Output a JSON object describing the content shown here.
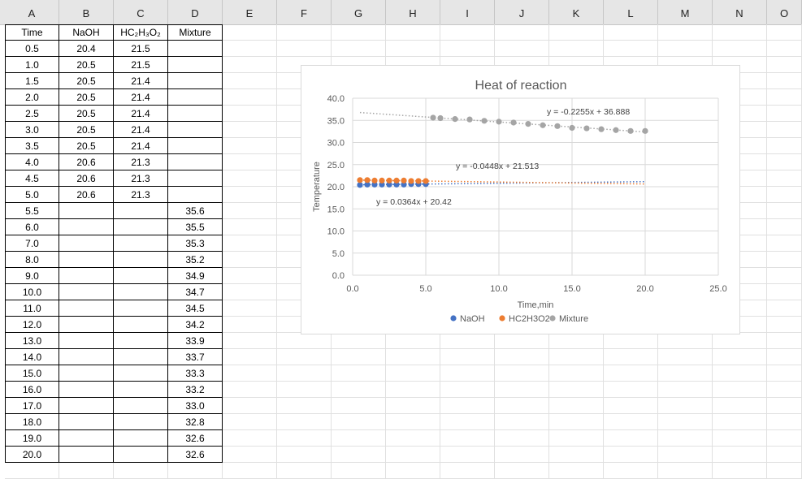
{
  "columns": [
    "A",
    "B",
    "C",
    "D",
    "E",
    "F",
    "G",
    "H",
    "I",
    "J",
    "K",
    "L",
    "M",
    "N",
    "O"
  ],
  "table": {
    "headers": [
      "Time",
      "NaOH",
      "HC₂H₃O₂",
      "Mixture"
    ],
    "rows": [
      [
        "0.5",
        "20.4",
        "21.5",
        ""
      ],
      [
        "1.0",
        "20.5",
        "21.5",
        ""
      ],
      [
        "1.5",
        "20.5",
        "21.4",
        ""
      ],
      [
        "2.0",
        "20.5",
        "21.4",
        ""
      ],
      [
        "2.5",
        "20.5",
        "21.4",
        ""
      ],
      [
        "3.0",
        "20.5",
        "21.4",
        ""
      ],
      [
        "3.5",
        "20.5",
        "21.4",
        ""
      ],
      [
        "4.0",
        "20.6",
        "21.3",
        ""
      ],
      [
        "4.5",
        "20.6",
        "21.3",
        ""
      ],
      [
        "5.0",
        "20.6",
        "21.3",
        ""
      ],
      [
        "5.5",
        "",
        "",
        "35.6"
      ],
      [
        "6.0",
        "",
        "",
        "35.5"
      ],
      [
        "7.0",
        "",
        "",
        "35.3"
      ],
      [
        "8.0",
        "",
        "",
        "35.2"
      ],
      [
        "9.0",
        "",
        "",
        "34.9"
      ],
      [
        "10.0",
        "",
        "",
        "34.7"
      ],
      [
        "11.0",
        "",
        "",
        "34.5"
      ],
      [
        "12.0",
        "",
        "",
        "34.2"
      ],
      [
        "13.0",
        "",
        "",
        "33.9"
      ],
      [
        "14.0",
        "",
        "",
        "33.7"
      ],
      [
        "15.0",
        "",
        "",
        "33.3"
      ],
      [
        "16.0",
        "",
        "",
        "33.2"
      ],
      [
        "17.0",
        "",
        "",
        "33.0"
      ],
      [
        "18.0",
        "",
        "",
        "32.8"
      ],
      [
        "19.0",
        "",
        "",
        "32.6"
      ],
      [
        "20.0",
        "",
        "",
        "32.6"
      ]
    ]
  },
  "chart_data": {
    "type": "scatter",
    "title": "Heat of reaction",
    "xlabel": "Time,min",
    "ylabel": "Temperature",
    "xlim": [
      0,
      25
    ],
    "ylim": [
      0,
      40
    ],
    "xticks": [
      "0.0",
      "5.0",
      "10.0",
      "15.0",
      "20.0",
      "25.0"
    ],
    "yticks": [
      "0.0",
      "5.0",
      "10.0",
      "15.0",
      "20.0",
      "25.0",
      "30.0",
      "35.0",
      "40.0"
    ],
    "grid": true,
    "legend_position": "bottom",
    "series": [
      {
        "name": "NaOH",
        "color": "#4472c4",
        "x": [
          0.5,
          1.0,
          1.5,
          2.0,
          2.5,
          3.0,
          3.5,
          4.0,
          4.5,
          5.0
        ],
        "y": [
          20.4,
          20.5,
          20.5,
          20.5,
          20.5,
          20.5,
          20.5,
          20.6,
          20.6,
          20.6
        ],
        "trendline": {
          "slope": 0.0364,
          "intercept": 20.42,
          "x_range": [
            0.5,
            20
          ],
          "label": "y = 0.0364x + 20.42"
        }
      },
      {
        "name": "HC2H3O2",
        "color": "#ed7d31",
        "x": [
          0.5,
          1.0,
          1.5,
          2.0,
          2.5,
          3.0,
          3.5,
          4.0,
          4.5,
          5.0
        ],
        "y": [
          21.5,
          21.5,
          21.4,
          21.4,
          21.4,
          21.4,
          21.4,
          21.3,
          21.3,
          21.3
        ],
        "trendline": {
          "slope": -0.0448,
          "intercept": 21.513,
          "x_range": [
            0.5,
            20
          ],
          "label": "y = -0.0448x + 21.513"
        }
      },
      {
        "name": "Mixture",
        "color": "#a5a5a5",
        "x": [
          5.5,
          6.0,
          7.0,
          8.0,
          9.0,
          10.0,
          11.0,
          12.0,
          13.0,
          14.0,
          15.0,
          16.0,
          17.0,
          18.0,
          19.0,
          20.0
        ],
        "y": [
          35.6,
          35.5,
          35.3,
          35.2,
          34.9,
          34.7,
          34.5,
          34.2,
          33.9,
          33.7,
          33.3,
          33.2,
          33.0,
          32.8,
          32.6,
          32.6
        ],
        "trendline": {
          "slope": -0.2255,
          "intercept": 36.888,
          "x_range": [
            0.5,
            20
          ],
          "label": "y = -0.2255x + 36.888"
        }
      }
    ]
  }
}
